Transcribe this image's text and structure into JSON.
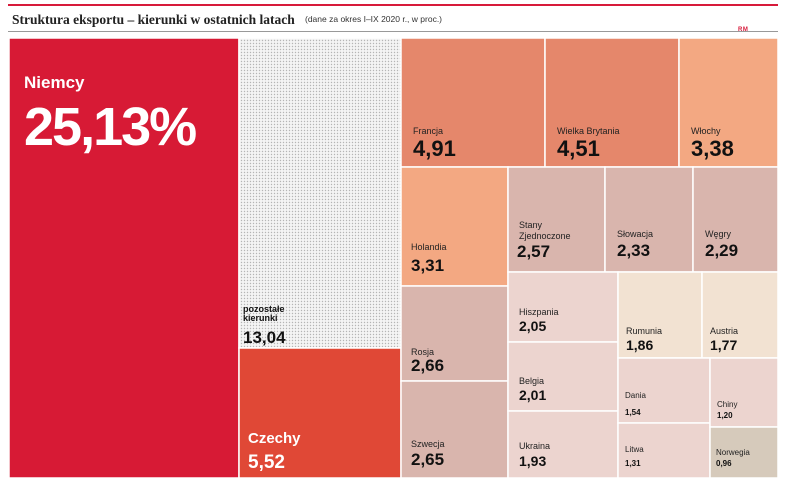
{
  "title": "Struktura eksportu – kierunki w ostatnich latach",
  "subtitle": "(dane za okres I–IX 2020 r., w proc.)",
  "logo": "RM",
  "chart_data": {
    "type": "treemap",
    "title": "Struktura eksportu – kierunki w ostatnich latach",
    "unit": "proc.",
    "items": [
      {
        "name": "Niemcy",
        "label": "25,13%",
        "value": 25.13,
        "color": "#d71a35"
      },
      {
        "name": "pozostałe kierunki",
        "label": "13,04",
        "value": 13.04,
        "color": "#e8e8e8",
        "pattern": "dots"
      },
      {
        "name": "Czechy",
        "label": "5,52",
        "value": 5.52,
        "color": "#e04836"
      },
      {
        "name": "Francja",
        "label": "4,91",
        "value": 4.91,
        "color": "#e5876b"
      },
      {
        "name": "Wielka Brytania",
        "label": "4,51",
        "value": 4.51,
        "color": "#e5876b"
      },
      {
        "name": "Włochy",
        "label": "3,38",
        "value": 3.38,
        "color": "#f3a882"
      },
      {
        "name": "Holandia",
        "label": "3,31",
        "value": 3.31,
        "color": "#f3a882"
      },
      {
        "name": "Rosja",
        "label": "2,66",
        "value": 2.66,
        "color": "#d9b5ad"
      },
      {
        "name": "Szwecja",
        "label": "2,65",
        "value": 2.65,
        "color": "#d9b5ad"
      },
      {
        "name": "Stany Zjednoczone",
        "label": "2,57",
        "value": 2.57,
        "color": "#d9b5ad"
      },
      {
        "name": "Słowacja",
        "label": "2,33",
        "value": 2.33,
        "color": "#d9b5ad"
      },
      {
        "name": "Węgry",
        "label": "2,29",
        "value": 2.29,
        "color": "#d9b5ad"
      },
      {
        "name": "Hiszpania",
        "label": "2,05",
        "value": 2.05,
        "color": "#ecd4cf"
      },
      {
        "name": "Belgia",
        "label": "2,01",
        "value": 2.01,
        "color": "#ecd4cf"
      },
      {
        "name": "Ukraina",
        "label": "1,93",
        "value": 1.93,
        "color": "#ecd4cf"
      },
      {
        "name": "Rumunia",
        "label": "1,86",
        "value": 1.86,
        "color": "#f2e2d2"
      },
      {
        "name": "Austria",
        "label": "1,77",
        "value": 1.77,
        "color": "#f2e2d2"
      },
      {
        "name": "Dania",
        "label": "1,54",
        "value": 1.54,
        "color": "#ecd4cf"
      },
      {
        "name": "Litwa",
        "label": "1,31",
        "value": 1.31,
        "color": "#ecd4cf"
      },
      {
        "name": "Chiny",
        "label": "1,20",
        "value": 1.2,
        "color": "#ecd4cf"
      },
      {
        "name": "Norwegia",
        "label": "0,96",
        "value": 0.96,
        "color": "#d6cabb"
      }
    ]
  }
}
